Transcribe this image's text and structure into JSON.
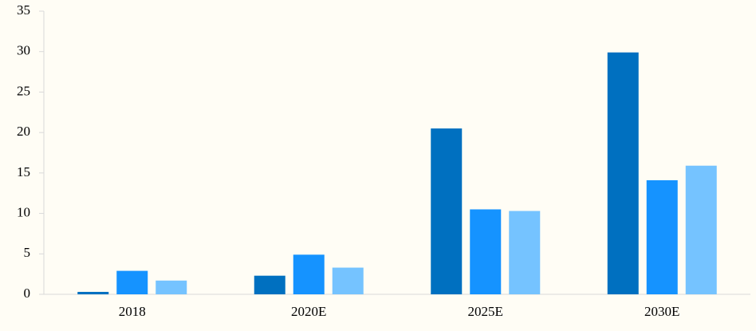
{
  "chart_data": {
    "type": "bar",
    "categories": [
      "2018",
      "2020E",
      "2025E",
      "2030E"
    ],
    "series": [
      {
        "color": "#0070c0",
        "values": [
          0.3,
          2.3,
          20.5,
          29.9
        ]
      },
      {
        "color": "#1593ff",
        "values": [
          2.9,
          4.9,
          10.5,
          14.1
        ]
      },
      {
        "color": "#75c3ff",
        "values": [
          1.7,
          3.3,
          10.3,
          15.9
        ]
      }
    ],
    "ylim": [
      0,
      35
    ],
    "yticks": [
      0,
      5,
      10,
      15,
      20,
      25,
      30,
      35
    ],
    "grid": false
  }
}
